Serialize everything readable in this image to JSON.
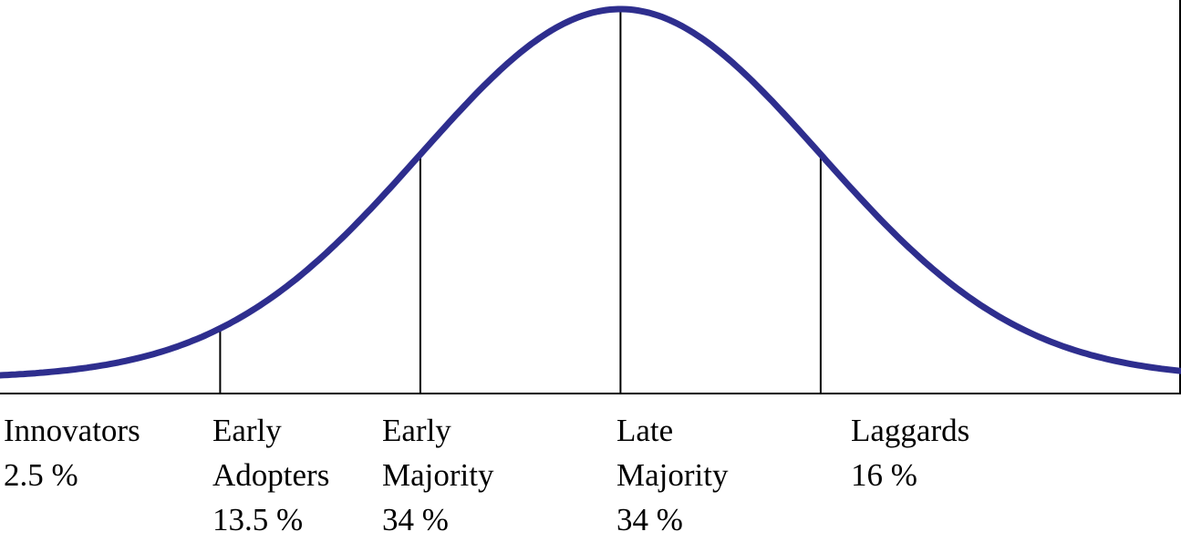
{
  "colors": {
    "curve": "#2e2e8e",
    "lines": "#000000",
    "background": "#ffffff"
  },
  "chart_data": {
    "type": "area",
    "distribution": "normal",
    "categories": [
      {
        "lines": [
          "Innovators",
          "2.5 %"
        ],
        "percent": 2.5
      },
      {
        "lines": [
          "Early",
          "Adopters",
          "13.5 %"
        ],
        "percent": 13.5
      },
      {
        "lines": [
          "Early",
          "Majority",
          "34 %"
        ],
        "percent": 34
      },
      {
        "lines": [
          "Late",
          "Majority",
          "34 %"
        ],
        "percent": 34
      },
      {
        "lines": [
          "Laggards",
          "16 %"
        ],
        "percent": 16
      }
    ],
    "dividers_sd": [
      -2,
      -1,
      0,
      1
    ],
    "x_range_sd": [
      -3.1,
      2.8
    ]
  }
}
